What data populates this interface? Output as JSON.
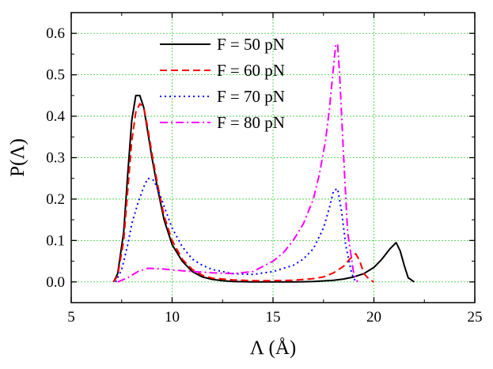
{
  "chart_data": {
    "type": "line",
    "title": "",
    "xlabel": "Λ (Å)",
    "ylabel": "P(Λ)",
    "xlim": [
      5,
      25
    ],
    "ylim": [
      -0.05,
      0.65
    ],
    "xticks": [
      5,
      10,
      15,
      20,
      25
    ],
    "yticks": [
      0.0,
      0.1,
      0.2,
      0.3,
      0.4,
      0.5,
      0.6
    ],
    "xtick_labels": [
      "5",
      "10",
      "15",
      "20",
      "25"
    ],
    "ytick_labels": [
      "0.0",
      "0.1",
      "0.2",
      "0.3",
      "0.4",
      "0.5",
      "0.6"
    ],
    "grid": true,
    "legend_position": "top-center",
    "series": [
      {
        "name": "F = 50 pN",
        "color": "#000000",
        "dash": "solid",
        "x": [
          7.1,
          7.3,
          7.6,
          7.8,
          8.0,
          8.2,
          8.4,
          8.6,
          8.8,
          9.0,
          9.3,
          9.6,
          10.0,
          10.5,
          11.0,
          11.5,
          12.0,
          12.5,
          13.0,
          14.0,
          15.0,
          16.0,
          17.0,
          18.0,
          18.5,
          19.0,
          19.5,
          20.0,
          20.4,
          20.8,
          21.1,
          21.3,
          21.5,
          21.7,
          22.0
        ],
        "y": [
          0.0,
          0.02,
          0.12,
          0.26,
          0.39,
          0.45,
          0.45,
          0.42,
          0.36,
          0.3,
          0.22,
          0.15,
          0.09,
          0.05,
          0.025,
          0.012,
          0.006,
          0.003,
          0.001,
          0.0,
          0.0,
          0.0,
          0.001,
          0.004,
          0.007,
          0.012,
          0.02,
          0.035,
          0.055,
          0.08,
          0.095,
          0.075,
          0.04,
          0.01,
          0.0
        ]
      },
      {
        "name": "F = 60 pN",
        "color": "#ff0000",
        "dash": "dashed",
        "x": [
          7.1,
          7.3,
          7.6,
          7.8,
          8.0,
          8.2,
          8.4,
          8.6,
          8.8,
          9.0,
          9.3,
          9.6,
          10.0,
          10.5,
          11.0,
          11.5,
          12.0,
          13.0,
          14.0,
          15.0,
          16.0,
          17.0,
          17.5,
          18.0,
          18.5,
          18.8,
          19.1,
          19.3,
          19.5,
          19.8,
          20.0
        ],
        "y": [
          0.0,
          0.015,
          0.1,
          0.22,
          0.34,
          0.41,
          0.43,
          0.42,
          0.37,
          0.31,
          0.23,
          0.16,
          0.1,
          0.055,
          0.03,
          0.016,
          0.009,
          0.005,
          0.003,
          0.003,
          0.004,
          0.008,
          0.012,
          0.022,
          0.038,
          0.055,
          0.068,
          0.05,
          0.02,
          0.005,
          0.0
        ]
      },
      {
        "name": "F = 70 pN",
        "color": "#0000ff",
        "dash": "dotted",
        "x": [
          7.2,
          7.5,
          7.8,
          8.0,
          8.3,
          8.6,
          8.8,
          9.1,
          9.4,
          9.7,
          10.0,
          10.5,
          11.0,
          11.5,
          12.0,
          13.0,
          14.0,
          15.0,
          16.0,
          16.5,
          17.0,
          17.5,
          17.8,
          18.0,
          18.2,
          18.4,
          18.6,
          18.9,
          19.1
        ],
        "y": [
          0.0,
          0.03,
          0.09,
          0.14,
          0.19,
          0.23,
          0.25,
          0.245,
          0.21,
          0.17,
          0.13,
          0.085,
          0.055,
          0.04,
          0.03,
          0.02,
          0.018,
          0.025,
          0.04,
          0.055,
          0.08,
          0.13,
          0.18,
          0.22,
          0.225,
          0.17,
          0.09,
          0.02,
          0.0
        ]
      },
      {
        "name": "F = 80 pN",
        "color": "#ff00ff",
        "dash": "dashdot",
        "x": [
          7.3,
          7.8,
          8.3,
          8.8,
          9.2,
          9.6,
          10.0,
          11.0,
          12.0,
          13.0,
          14.0,
          15.0,
          15.5,
          16.0,
          16.5,
          17.0,
          17.3,
          17.6,
          17.8,
          18.0,
          18.1,
          18.2,
          18.3,
          18.5,
          18.7,
          19.0,
          19.2
        ],
        "y": [
          0.0,
          0.01,
          0.025,
          0.033,
          0.032,
          0.031,
          0.029,
          0.025,
          0.022,
          0.02,
          0.025,
          0.05,
          0.07,
          0.1,
          0.14,
          0.2,
          0.26,
          0.34,
          0.42,
          0.52,
          0.57,
          0.575,
          0.5,
          0.3,
          0.12,
          0.02,
          0.0
        ]
      }
    ]
  }
}
